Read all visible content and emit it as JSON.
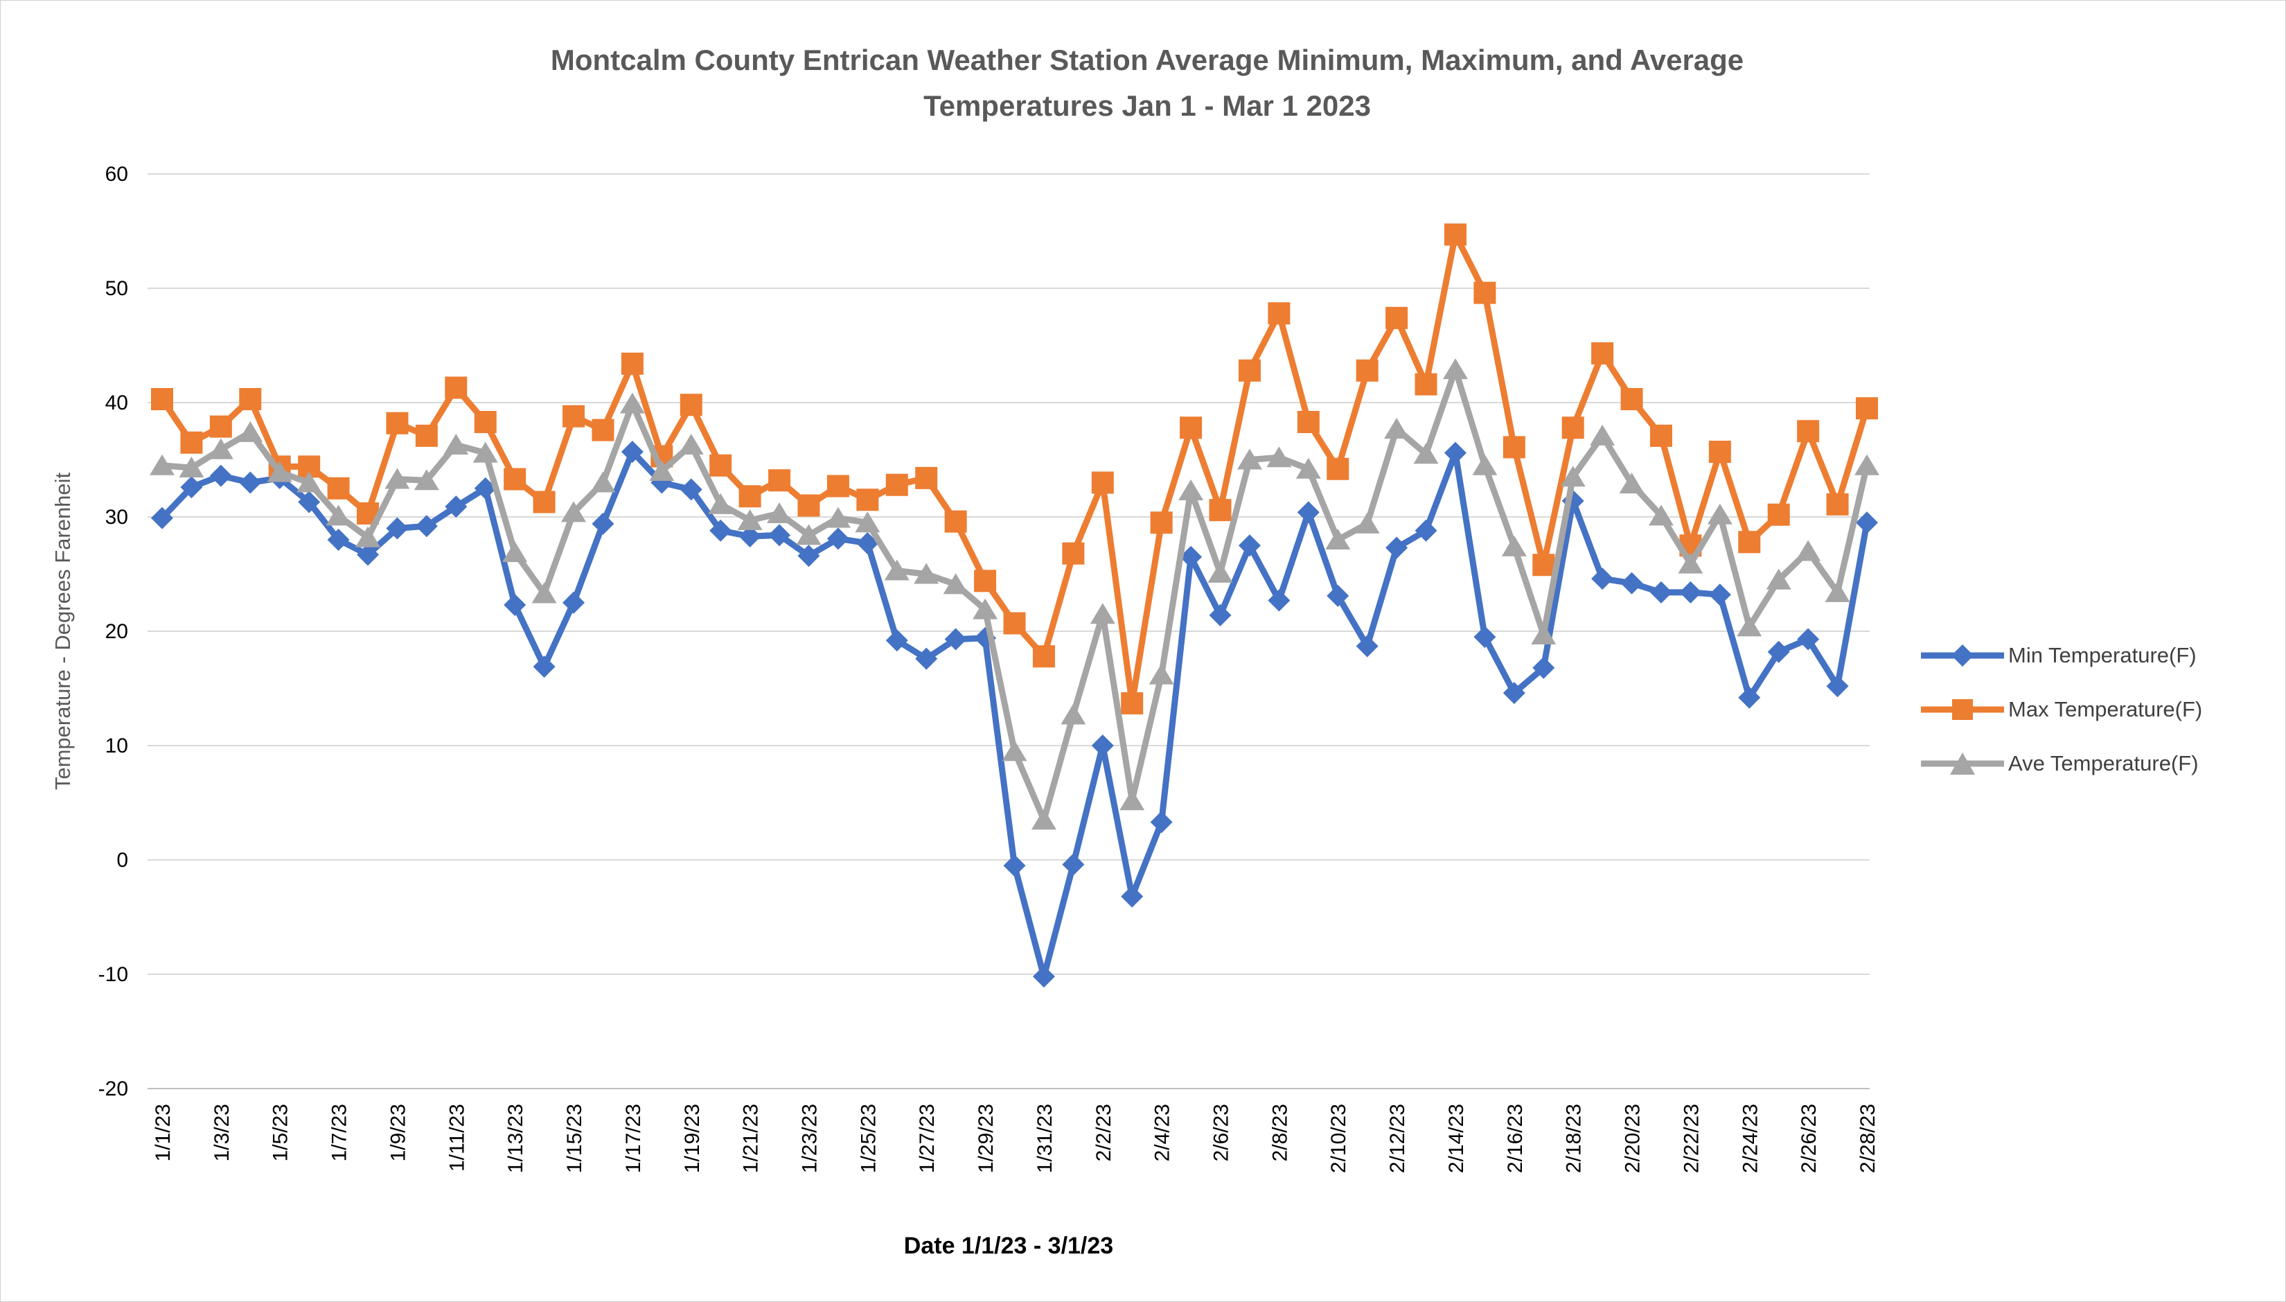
{
  "title_line1": "Montcalm County Entrican Weather Station Average Minimum, Maximum, and Average",
  "title_line2": "Temperatures Jan 1 - Mar 1 2023",
  "y_axis_title": "Temperature - Degrees Farenheit",
  "x_axis_title": "Date 1/1/23 - 3/1/23",
  "colors": {
    "min": "#4472C4",
    "max": "#ED7D31",
    "ave": "#A5A5A5",
    "gridline": "#D9D9D9",
    "axis_line": "#BFBFBF",
    "title_text": "#595959",
    "axis_text": "#000000",
    "legend_text": "#404040"
  },
  "legend": [
    {
      "label": "Min Temperature(F)",
      "series": "min",
      "marker": "diamond"
    },
    {
      "label": "Max Temperature(F)",
      "series": "max",
      "marker": "square"
    },
    {
      "label": "Ave Temperature(F)",
      "series": "ave",
      "marker": "triangle"
    }
  ],
  "chart_data": {
    "type": "line",
    "title": "Montcalm County Entrican Weather Station Average Minimum, Maximum, and Average Temperatures Jan 1 - Mar 1 2023",
    "xlabel": "Date 1/1/23 - 3/1/23",
    "ylabel": "Temperature - Degrees Farenheit",
    "ylim": [
      -20,
      60
    ],
    "ytick_step": 10,
    "yticks": [
      60,
      50,
      40,
      30,
      20,
      10,
      0,
      -10,
      -20
    ],
    "grid": true,
    "legend_position": "right",
    "x_labels_every": 2,
    "categories": [
      "1/1/23",
      "1/2/23",
      "1/3/23",
      "1/4/23",
      "1/5/23",
      "1/6/23",
      "1/7/23",
      "1/8/23",
      "1/9/23",
      "1/10/23",
      "1/11/23",
      "1/12/23",
      "1/13/23",
      "1/14/23",
      "1/15/23",
      "1/16/23",
      "1/17/23",
      "1/18/23",
      "1/19/23",
      "1/20/23",
      "1/21/23",
      "1/22/23",
      "1/23/23",
      "1/24/23",
      "1/25/23",
      "1/26/23",
      "1/27/23",
      "1/28/23",
      "1/29/23",
      "1/30/23",
      "1/31/23",
      "2/1/23",
      "2/2/23",
      "2/3/23",
      "2/4/23",
      "2/5/23",
      "2/6/23",
      "2/7/23",
      "2/8/23",
      "2/9/23",
      "2/10/23",
      "2/11/23",
      "2/12/23",
      "2/13/23",
      "2/14/23",
      "2/15/23",
      "2/16/23",
      "2/17/23",
      "2/18/23",
      "2/19/23",
      "2/20/23",
      "2/21/23",
      "2/22/23",
      "2/23/23",
      "2/24/23",
      "2/25/23",
      "2/26/23",
      "2/27/23",
      "2/28/23"
    ],
    "series": [
      {
        "name": "Min Temperature(F)",
        "key": "min",
        "marker": "diamond",
        "values": [
          29.9,
          32.6,
          33.6,
          33.0,
          33.4,
          31.3,
          28.0,
          26.7,
          29.0,
          29.2,
          30.9,
          32.5,
          22.3,
          16.9,
          22.5,
          29.4,
          35.7,
          33.0,
          32.4,
          28.8,
          28.3,
          28.4,
          26.6,
          28.1,
          27.7,
          19.2,
          17.6,
          19.3,
          19.4,
          -0.5,
          -10.2,
          -0.4,
          10.0,
          -3.2,
          3.3,
          26.5,
          21.4,
          27.5,
          22.7,
          30.4,
          23.1,
          18.7,
          27.3,
          28.8,
          35.6,
          19.5,
          14.6,
          16.8,
          31.4,
          24.6,
          24.2,
          23.4,
          23.4,
          23.2,
          14.2,
          18.2,
          19.3,
          15.2,
          29.5
        ]
      },
      {
        "name": "Max Temperature(F)",
        "key": "max",
        "marker": "square",
        "values": [
          40.3,
          36.5,
          37.9,
          40.3,
          34.4,
          34.4,
          32.5,
          30.3,
          38.2,
          37.1,
          41.3,
          38.3,
          33.3,
          31.3,
          38.8,
          37.6,
          43.4,
          35.3,
          39.8,
          34.5,
          31.8,
          33.2,
          31.0,
          32.7,
          31.5,
          32.8,
          33.4,
          29.6,
          24.4,
          20.7,
          17.8,
          26.8,
          33.0,
          13.7,
          29.5,
          37.8,
          30.6,
          42.8,
          47.8,
          38.3,
          34.2,
          42.8,
          47.4,
          41.6,
          54.7,
          49.6,
          36.1,
          25.8,
          37.8,
          44.3,
          40.3,
          37.1,
          27.5,
          35.7,
          27.8,
          30.2,
          37.5,
          31.1,
          39.5
        ]
      },
      {
        "name": "Ave Temperature(F)",
        "key": "ave",
        "marker": "triangle",
        "values": [
          34.5,
          34.3,
          35.9,
          37.4,
          33.9,
          33.0,
          30.1,
          28.2,
          33.3,
          33.2,
          36.3,
          35.6,
          26.9,
          23.3,
          30.4,
          33.0,
          39.9,
          34.0,
          36.3,
          31.1,
          29.7,
          30.3,
          28.4,
          29.9,
          29.5,
          25.3,
          25.0,
          24.1,
          21.9,
          9.5,
          3.5,
          12.7,
          21.5,
          5.2,
          16.2,
          32.3,
          25.1,
          35.0,
          35.2,
          34.2,
          28.0,
          29.4,
          37.7,
          35.5,
          42.9,
          34.5,
          27.4,
          19.7,
          33.5,
          37.1,
          32.9,
          30.1,
          25.9,
          30.2,
          20.4,
          24.5,
          27.0,
          23.4,
          34.5
        ]
      }
    ]
  }
}
